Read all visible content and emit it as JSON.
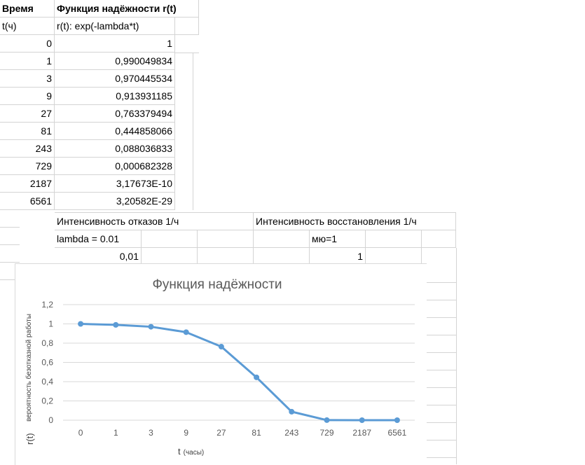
{
  "sheet": {
    "header": {
      "col_a": "Время",
      "col_b": "Функция надёжности r(t)"
    },
    "subheader": {
      "col_a": "t(ч)",
      "col_b": "r(t): exp(-lambda*t)"
    },
    "rows": [
      {
        "t": "0",
        "r": "1"
      },
      {
        "t": "1",
        "r": "0,990049834"
      },
      {
        "t": "3",
        "r": "0,970445534"
      },
      {
        "t": "9",
        "r": "0,913931185"
      },
      {
        "t": "27",
        "r": "0,763379494"
      },
      {
        "t": "81",
        "r": "0,444858066"
      },
      {
        "t": "243",
        "r": "0,088036833"
      },
      {
        "t": "729",
        "r": "0,000682328"
      },
      {
        "t": "2187",
        "r": "3,17673E-10"
      },
      {
        "t": "6561",
        "r": "3,20582E-29"
      }
    ],
    "params": {
      "failure_title": "Интенсивность отказов 1/ч",
      "recovery_title": "Интенсивность восстановления 1/ч",
      "lambda_label": "lambda = 0.01",
      "mu_label": "мю=1",
      "lambda_value": "0,01",
      "mu_value": "1"
    }
  },
  "chart_data": {
    "type": "line",
    "title": "Функция надёжности",
    "xlabel": "t",
    "xlabel_unit": "(часы)",
    "ylabel": "вероятность безотказной работы",
    "ylabel_prefix": "r(t)",
    "categories": [
      "0",
      "1",
      "3",
      "9",
      "27",
      "81",
      "243",
      "729",
      "2187",
      "6561"
    ],
    "series": [
      {
        "values": [
          1,
          0.990049834,
          0.970445534,
          0.913931185,
          0.763379494,
          0.444858066,
          0.088036833,
          0.000682328,
          3.17673e-10,
          3.20582e-29
        ]
      }
    ],
    "ylim": [
      0,
      1.2
    ],
    "yticks": [
      "0",
      "0,2",
      "0,4",
      "0,6",
      "0,8",
      "1",
      "1,2"
    ],
    "grid": true,
    "legend": "none",
    "line_color": "#5b9bd5"
  }
}
